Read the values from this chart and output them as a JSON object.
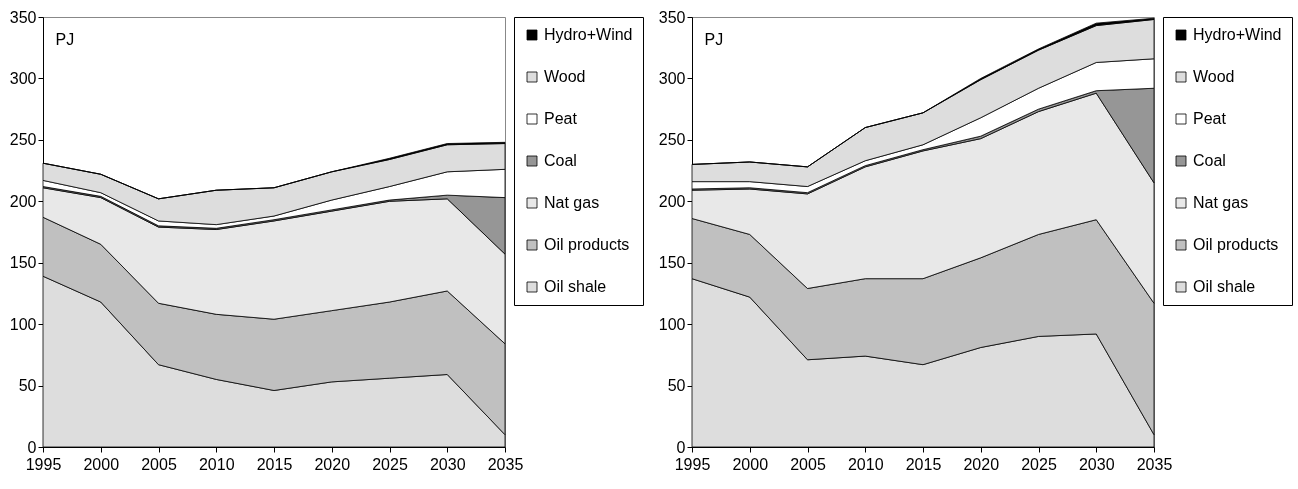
{
  "chart_data": [
    {
      "type": "area",
      "stacked": true,
      "ylabel": "PJ",
      "x": [
        1995,
        2000,
        2005,
        2010,
        2015,
        2020,
        2025,
        2030,
        2035
      ],
      "xlim": [
        1995,
        2035
      ],
      "xticks": [
        1995,
        2000,
        2005,
        2010,
        2015,
        2020,
        2025,
        2030,
        2035
      ],
      "ylim": [
        0,
        350
      ],
      "yticks": [
        0,
        50,
        100,
        150,
        200,
        250,
        300,
        350
      ],
      "grid": false,
      "legend": "right",
      "series": [
        {
          "name": "Oil shale",
          "color": "#dddddd",
          "values": [
            139,
            118,
            67,
            55,
            46,
            53,
            56,
            59,
            10
          ]
        },
        {
          "name": "Oil products",
          "color": "#c0c0c0",
          "values": [
            48,
            47,
            50,
            53,
            58,
            58,
            62,
            68,
            74
          ]
        },
        {
          "name": "Nat gas",
          "color": "#e8e8e8",
          "values": [
            24,
            38,
            62,
            69,
            80,
            81,
            82,
            75,
            73
          ]
        },
        {
          "name": "Coal",
          "color": "#969696",
          "values": [
            1,
            1,
            1,
            1,
            1,
            1,
            1,
            3,
            46
          ]
        },
        {
          "name": "Peat",
          "color": "#ffffff",
          "values": [
            5,
            3,
            4,
            3,
            3,
            8,
            11,
            19,
            23
          ]
        },
        {
          "name": "Wood",
          "color": "#dddddd",
          "values": [
            14,
            15,
            18,
            28,
            23,
            23,
            22,
            22,
            21
          ]
        },
        {
          "name": "Hydro+Wind",
          "color": "#000000",
          "values": [
            0,
            0,
            0,
            0,
            0,
            0,
            1,
            1,
            1
          ]
        }
      ]
    },
    {
      "type": "area",
      "stacked": true,
      "ylabel": "PJ",
      "x": [
        1995,
        2000,
        2005,
        2010,
        2015,
        2020,
        2025,
        2030,
        2035
      ],
      "xlim": [
        1995,
        2035
      ],
      "xticks": [
        1995,
        2000,
        2005,
        2010,
        2015,
        2020,
        2025,
        2030,
        2035
      ],
      "ylim": [
        0,
        350
      ],
      "yticks": [
        0,
        50,
        100,
        150,
        200,
        250,
        300,
        350
      ],
      "grid": false,
      "legend": "right",
      "series": [
        {
          "name": "Oil shale",
          "color": "#dddddd",
          "values": [
            137,
            122,
            71,
            74,
            67,
            81,
            90,
            92,
            10
          ]
        },
        {
          "name": "Oil products",
          "color": "#c0c0c0",
          "values": [
            49,
            51,
            58,
            63,
            70,
            73,
            83,
            93,
            107
          ]
        },
        {
          "name": "Nat gas",
          "color": "#e8e8e8",
          "values": [
            23,
            37,
            77,
            91,
            104,
            97,
            100,
            103,
            98
          ]
        },
        {
          "name": "Coal",
          "color": "#969696",
          "values": [
            1,
            1,
            1,
            1,
            1,
            2,
            2,
            2,
            77
          ]
        },
        {
          "name": "Peat",
          "color": "#ffffff",
          "values": [
            6,
            5,
            5,
            4,
            4,
            15,
            17,
            23,
            24
          ]
        },
        {
          "name": "Wood",
          "color": "#dddddd",
          "values": [
            14,
            16,
            16,
            27,
            26,
            31,
            31,
            30,
            32
          ]
        },
        {
          "name": "Hydro+Wind",
          "color": "#000000",
          "values": [
            0,
            0,
            0,
            0,
            0,
            1,
            1,
            2,
            1
          ]
        }
      ]
    }
  ]
}
